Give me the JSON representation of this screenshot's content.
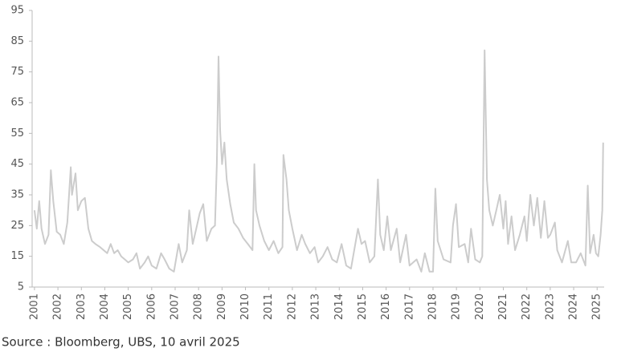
{
  "chart_data": {
    "type": "line",
    "source": "Source : Bloomberg, UBS, 10 avril 2025",
    "series": [
      {
        "color": "#cccccc",
        "x": [
          2001.0,
          2001.1,
          2001.2,
          2001.3,
          2001.45,
          2001.6,
          2001.7,
          2001.8,
          2001.95,
          2002.1,
          2002.25,
          2002.4,
          2002.55,
          2002.6,
          2002.75,
          2002.85,
          2003.0,
          2003.15,
          2003.3,
          2003.45,
          2003.6,
          2003.8,
          2003.95,
          2004.1,
          2004.25,
          2004.4,
          2004.55,
          2004.7,
          2004.85,
          2005.0,
          2005.2,
          2005.35,
          2005.5,
          2005.7,
          2005.85,
          2006.0,
          2006.2,
          2006.4,
          2006.55,
          2006.75,
          2006.95,
          2007.15,
          2007.3,
          2007.5,
          2007.6,
          2007.75,
          2007.9,
          2008.05,
          2008.2,
          2008.35,
          2008.55,
          2008.7,
          2008.78,
          2008.85,
          2008.92,
          2009.0,
          2009.1,
          2009.2,
          2009.35,
          2009.5,
          2009.7,
          2009.9,
          2010.1,
          2010.3,
          2010.38,
          2010.45,
          2010.6,
          2010.8,
          2011.0,
          2011.2,
          2011.4,
          2011.58,
          2011.62,
          2011.75,
          2011.85,
          2012.0,
          2012.2,
          2012.4,
          2012.55,
          2012.75,
          2012.95,
          2013.1,
          2013.3,
          2013.5,
          2013.7,
          2013.9,
          2014.1,
          2014.3,
          2014.5,
          2014.8,
          2014.95,
          2015.1,
          2015.3,
          2015.5,
          2015.65,
          2015.75,
          2015.9,
          2016.05,
          2016.2,
          2016.45,
          2016.6,
          2016.85,
          2017.0,
          2017.3,
          2017.5,
          2017.65,
          2017.85,
          2018.0,
          2018.1,
          2018.2,
          2018.45,
          2018.75,
          2018.85,
          2018.98,
          2019.1,
          2019.35,
          2019.5,
          2019.62,
          2019.8,
          2020.0,
          2020.1,
          2020.2,
          2020.3,
          2020.4,
          2020.55,
          2020.7,
          2020.85,
          2021.0,
          2021.1,
          2021.2,
          2021.35,
          2021.5,
          2021.7,
          2021.9,
          2022.0,
          2022.15,
          2022.3,
          2022.45,
          2022.6,
          2022.75,
          2022.9,
          2023.0,
          2023.2,
          2023.3,
          2023.5,
          2023.75,
          2023.9,
          2024.1,
          2024.3,
          2024.5,
          2024.6,
          2024.7,
          2024.85,
          2024.95,
          2025.05,
          2025.15,
          2025.22,
          2025.26
        ],
        "values": [
          30,
          24,
          33,
          24,
          19,
          22,
          43,
          33,
          23,
          22,
          19,
          26,
          44,
          35,
          42,
          30,
          33,
          34,
          24,
          20,
          19,
          18,
          17,
          16,
          19,
          16,
          17,
          15,
          14,
          13,
          14,
          16,
          11,
          13,
          15,
          12,
          11,
          16,
          14,
          11,
          10,
          19,
          13,
          17,
          30,
          19,
          24,
          29,
          32,
          20,
          24,
          25,
          45,
          80,
          56,
          45,
          52,
          40,
          32,
          26,
          24,
          21,
          19,
          17,
          45,
          30,
          25,
          20,
          17,
          20,
          16,
          18,
          48,
          40,
          30,
          24,
          17,
          22,
          19,
          16,
          18,
          13,
          15,
          18,
          14,
          13,
          19,
          12,
          11,
          24,
          19,
          20,
          13,
          15,
          40,
          22,
          17,
          28,
          17,
          24,
          13,
          22,
          12,
          14,
          10,
          16,
          10,
          10,
          37,
          20,
          14,
          13,
          25,
          32,
          18,
          19,
          13,
          24,
          14,
          13,
          15,
          82,
          40,
          30,
          25,
          30,
          35,
          24,
          33,
          19,
          28,
          17,
          22,
          28,
          20,
          35,
          25,
          34,
          21,
          33,
          21,
          22,
          26,
          17,
          13,
          20,
          13,
          13,
          16,
          12,
          38,
          16,
          22,
          16,
          15,
          22,
          30,
          52
        ]
      }
    ],
    "xlim": [
      2000.9,
      2025.3
    ],
    "xticks": [
      2001,
      2002,
      2003,
      2004,
      2005,
      2006,
      2007,
      2008,
      2009,
      2010,
      2011,
      2012,
      2013,
      2014,
      2015,
      2016,
      2017,
      2018,
      2019,
      2020,
      2021,
      2022,
      2023,
      2024,
      2025
    ],
    "ylim": [
      5,
      95
    ],
    "yticks": [
      5,
      15,
      25,
      35,
      45,
      55,
      65,
      75,
      85,
      95
    ]
  }
}
